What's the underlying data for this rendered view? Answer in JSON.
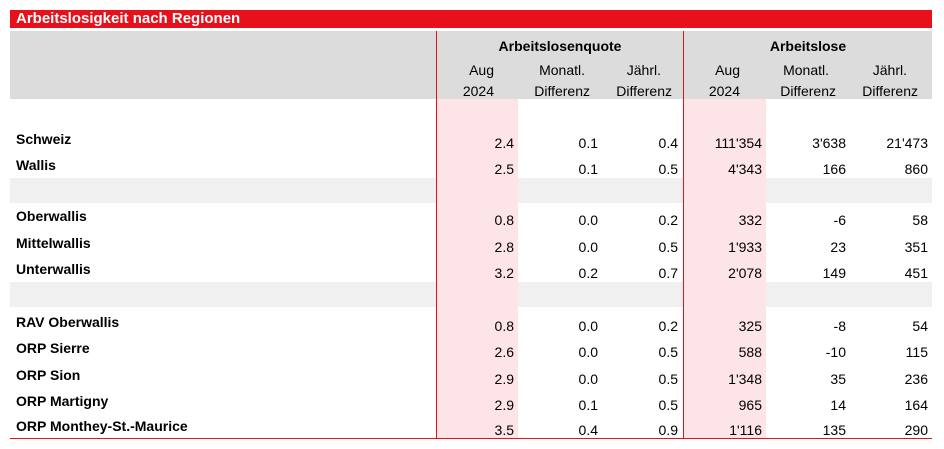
{
  "title": "Arbeitslosigkeit nach Regionen",
  "groups": {
    "quote": "Arbeitslosenquote",
    "lose": "Arbeitslose"
  },
  "columns": {
    "aug": [
      "Aug",
      "2024"
    ],
    "monatl": [
      "Monatl.",
      "Differenz"
    ],
    "jaehrl": [
      "Jährl.",
      "Differenz"
    ]
  },
  "rows": [
    {
      "name": "Schweiz",
      "q_aug": "2.4",
      "q_mon": "0.1",
      "q_jahr": "0.4",
      "l_aug": "111'354",
      "l_mon": "3'638",
      "l_jahr": "21'473"
    },
    {
      "name": "Wallis",
      "q_aug": "2.5",
      "q_mon": "0.1",
      "q_jahr": "0.5",
      "l_aug": "4'343",
      "l_mon": "166",
      "l_jahr": "860"
    },
    {
      "name": "Oberwallis",
      "q_aug": "0.8",
      "q_mon": "0.0",
      "q_jahr": "0.2",
      "l_aug": "332",
      "l_mon": "-6",
      "l_jahr": "58"
    },
    {
      "name": "Mittelwallis",
      "q_aug": "2.8",
      "q_mon": "0.0",
      "q_jahr": "0.5",
      "l_aug": "1'933",
      "l_mon": "23",
      "l_jahr": "351"
    },
    {
      "name": "Unterwallis",
      "q_aug": "3.2",
      "q_mon": "0.2",
      "q_jahr": "0.7",
      "l_aug": "2'078",
      "l_mon": "149",
      "l_jahr": "451"
    },
    {
      "name": "RAV Oberwallis",
      "q_aug": "0.8",
      "q_mon": "0.0",
      "q_jahr": "0.2",
      "l_aug": "325",
      "l_mon": "-8",
      "l_jahr": "54"
    },
    {
      "name": "ORP Sierre",
      "q_aug": "2.6",
      "q_mon": "0.0",
      "q_jahr": "0.5",
      "l_aug": "588",
      "l_mon": "-10",
      "l_jahr": "115"
    },
    {
      "name": "ORP Sion",
      "q_aug": "2.9",
      "q_mon": "0.0",
      "q_jahr": "0.5",
      "l_aug": "1'348",
      "l_mon": "35",
      "l_jahr": "236"
    },
    {
      "name": "ORP Martigny",
      "q_aug": "2.9",
      "q_mon": "0.1",
      "q_jahr": "0.5",
      "l_aug": "965",
      "l_mon": "14",
      "l_jahr": "164"
    },
    {
      "name": "ORP Monthey-St.-Maurice",
      "q_aug": "3.5",
      "q_mon": "0.4",
      "q_jahr": "0.9",
      "l_aug": "1'116",
      "l_mon": "135",
      "l_jahr": "290"
    }
  ]
}
